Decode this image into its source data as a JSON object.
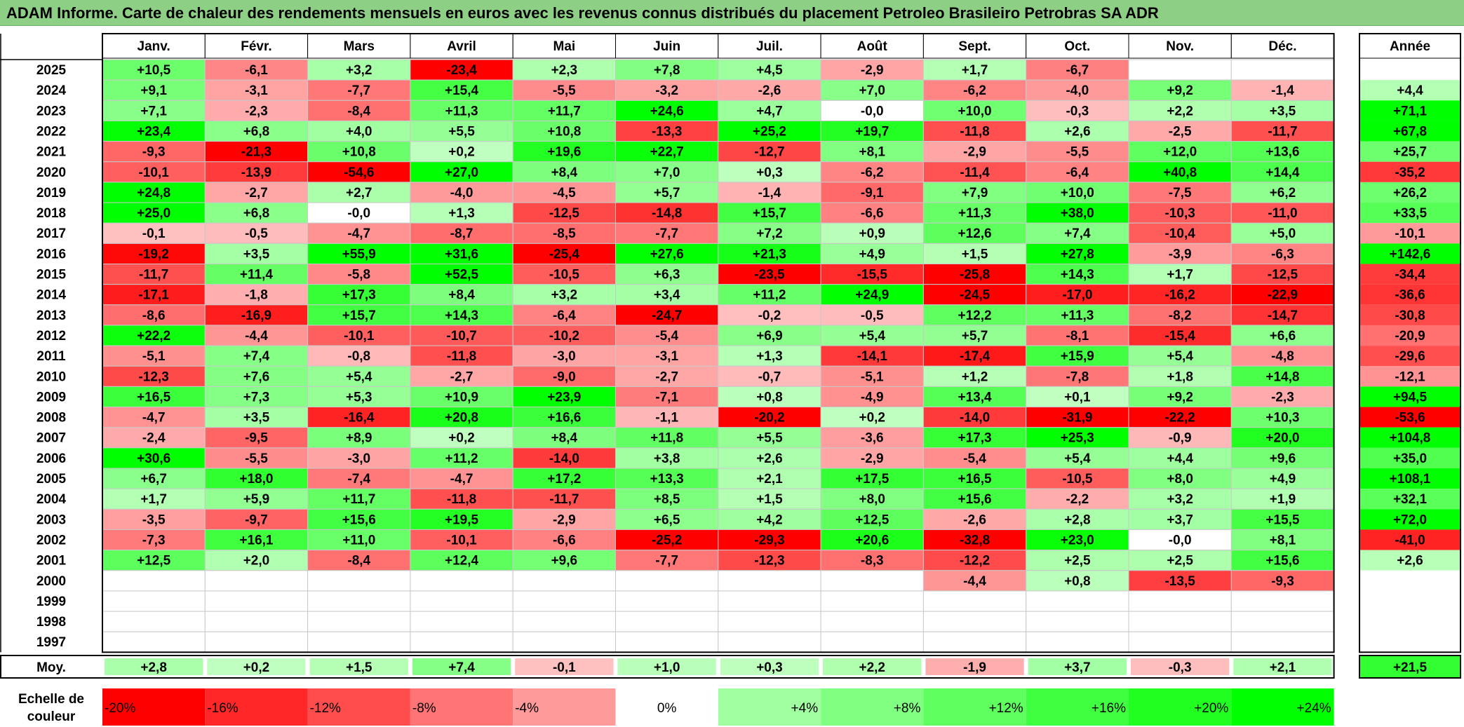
{
  "title": "ADAM Informe. Carte de chaleur des rendements mensuels en euros avec les revenus connus distribués du placement Petroleo Brasileiro Petrobras SA ADR",
  "chart_data": {
    "type": "heatmap",
    "months": [
      "Janv.",
      "Févr.",
      "Mars",
      "Avril",
      "Mai",
      "Juin",
      "Juil.",
      "Août",
      "Sept.",
      "Oct.",
      "Nov.",
      "Déc."
    ],
    "year_header": "Année",
    "avg_label": "Moy.",
    "scale_title_line1": "Echelle de",
    "scale_title_line2": "couleur",
    "rows": [
      {
        "year": "2025",
        "values": [
          10.5,
          -6.1,
          3.2,
          -23.4,
          2.3,
          7.8,
          4.5,
          -2.9,
          1.7,
          -6.7,
          null,
          null
        ],
        "annual": null
      },
      {
        "year": "2024",
        "values": [
          9.1,
          -3.1,
          -7.7,
          15.4,
          -5.5,
          -3.2,
          -2.6,
          7.0,
          -6.2,
          -4.0,
          9.2,
          -1.4
        ],
        "annual": 4.4
      },
      {
        "year": "2023",
        "values": [
          7.1,
          -2.3,
          -8.4,
          11.3,
          11.7,
          24.6,
          4.7,
          "-0,0",
          10.0,
          -0.3,
          2.2,
          3.5
        ],
        "annual": 71.1
      },
      {
        "year": "2022",
        "values": [
          23.4,
          6.8,
          4.0,
          5.5,
          10.8,
          -13.3,
          25.2,
          19.7,
          -11.8,
          2.6,
          -2.5,
          -11.7
        ],
        "annual": 67.8
      },
      {
        "year": "2021",
        "values": [
          -9.3,
          -21.3,
          10.8,
          0.2,
          19.6,
          22.7,
          -12.7,
          8.1,
          -2.9,
          -5.5,
          12.0,
          13.6
        ],
        "annual": 25.7
      },
      {
        "year": "2020",
        "values": [
          -10.1,
          -13.9,
          -54.6,
          27.0,
          8.4,
          7.0,
          0.3,
          -6.2,
          -11.4,
          -6.4,
          40.8,
          14.4
        ],
        "annual": -35.2
      },
      {
        "year": "2019",
        "values": [
          24.8,
          -2.7,
          2.7,
          -4.0,
          -4.5,
          5.7,
          -1.4,
          -9.1,
          7.9,
          10.0,
          -7.5,
          6.2
        ],
        "annual": 26.2
      },
      {
        "year": "2018",
        "values": [
          25.0,
          6.8,
          "-0,0",
          1.3,
          -12.5,
          -14.8,
          15.7,
          -6.6,
          11.3,
          38.0,
          -10.3,
          -11.0
        ],
        "annual": 33.5
      },
      {
        "year": "2017",
        "values": [
          -0.1,
          -0.5,
          -4.7,
          -8.7,
          -8.5,
          -7.7,
          7.2,
          0.9,
          12.6,
          7.4,
          -10.4,
          5.0
        ],
        "annual": -10.1
      },
      {
        "year": "2016",
        "values": [
          -19.2,
          3.5,
          55.9,
          31.6,
          -25.4,
          27.6,
          21.3,
          4.9,
          1.5,
          27.8,
          -3.9,
          -6.3
        ],
        "annual": 142.6
      },
      {
        "year": "2015",
        "values": [
          -11.7,
          11.4,
          -5.8,
          52.5,
          -10.5,
          6.3,
          -23.5,
          -15.5,
          -25.8,
          14.3,
          1.7,
          -12.5
        ],
        "annual": -34.4
      },
      {
        "year": "2014",
        "values": [
          -17.1,
          -1.8,
          17.3,
          8.4,
          3.2,
          3.4,
          11.2,
          24.9,
          -24.5,
          -17.0,
          -16.2,
          -22.9
        ],
        "annual": -36.6
      },
      {
        "year": "2013",
        "values": [
          -8.6,
          -16.9,
          15.7,
          14.3,
          -6.4,
          -24.7,
          -0.2,
          -0.5,
          12.2,
          11.3,
          -8.2,
          -14.7
        ],
        "annual": -30.8
      },
      {
        "year": "2012",
        "values": [
          22.2,
          -4.4,
          -10.1,
          -10.7,
          -10.2,
          -5.4,
          6.9,
          5.4,
          5.7,
          -8.1,
          -15.4,
          6.6
        ],
        "annual": -20.9
      },
      {
        "year": "2011",
        "values": [
          -5.1,
          7.4,
          -0.8,
          -11.8,
          -3.0,
          -3.1,
          1.3,
          -14.1,
          -17.4,
          15.9,
          5.4,
          -4.8
        ],
        "annual": -29.6
      },
      {
        "year": "2010",
        "values": [
          -12.3,
          7.6,
          5.4,
          -2.7,
          -9.0,
          -2.7,
          -0.7,
          -5.1,
          1.2,
          -7.8,
          1.8,
          14.8
        ],
        "annual": -12.1
      },
      {
        "year": "2009",
        "values": [
          16.5,
          7.3,
          5.3,
          10.9,
          23.9,
          -7.1,
          0.8,
          -4.9,
          13.4,
          0.1,
          9.2,
          -2.3
        ],
        "annual": 94.5
      },
      {
        "year": "2008",
        "values": [
          -4.7,
          3.5,
          -16.4,
          20.8,
          16.6,
          -1.1,
          -20.2,
          0.2,
          -14.0,
          -31.9,
          -22.2,
          10.3
        ],
        "annual": -53.6
      },
      {
        "year": "2007",
        "values": [
          -2.4,
          -9.5,
          8.9,
          0.2,
          8.4,
          11.8,
          5.5,
          -3.6,
          17.3,
          25.3,
          -0.9,
          20.0
        ],
        "annual": 104.8
      },
      {
        "year": "2006",
        "values": [
          30.6,
          -5.5,
          -3.0,
          11.2,
          -14.0,
          3.8,
          2.6,
          -2.9,
          -5.4,
          5.4,
          4.4,
          9.6
        ],
        "annual": 35.0
      },
      {
        "year": "2005",
        "values": [
          6.7,
          18.0,
          -7.4,
          -4.7,
          17.2,
          13.3,
          2.1,
          17.5,
          16.5,
          -10.5,
          8.0,
          4.9
        ],
        "annual": 108.1
      },
      {
        "year": "2004",
        "values": [
          1.7,
          5.9,
          11.7,
          -11.8,
          -11.7,
          8.5,
          1.5,
          8.0,
          15.6,
          -2.2,
          3.2,
          1.9
        ],
        "annual": 32.1
      },
      {
        "year": "2003",
        "values": [
          -3.5,
          -9.7,
          15.6,
          19.5,
          -2.9,
          6.5,
          4.2,
          12.5,
          -2.6,
          2.8,
          3.7,
          15.5
        ],
        "annual": 72.0
      },
      {
        "year": "2002",
        "values": [
          -7.3,
          16.1,
          11.0,
          -10.1,
          -6.6,
          -25.2,
          -29.3,
          20.6,
          -32.8,
          23.0,
          "-0,0",
          8.1
        ],
        "annual": -41.0
      },
      {
        "year": "2001",
        "values": [
          12.5,
          2.0,
          -8.4,
          12.4,
          9.6,
          -7.7,
          -12.3,
          -8.3,
          -12.2,
          2.5,
          2.5,
          15.6
        ],
        "annual": 2.6
      },
      {
        "year": "2000",
        "values": [
          null,
          null,
          null,
          null,
          null,
          null,
          null,
          null,
          -4.4,
          0.8,
          -13.5,
          -9.3
        ],
        "annual": null
      },
      {
        "year": "1999",
        "values": [
          null,
          null,
          null,
          null,
          null,
          null,
          null,
          null,
          null,
          null,
          null,
          null
        ],
        "annual": null
      },
      {
        "year": "1998",
        "values": [
          null,
          null,
          null,
          null,
          null,
          null,
          null,
          null,
          null,
          null,
          null,
          null
        ],
        "annual": null
      },
      {
        "year": "1997",
        "values": [
          null,
          null,
          null,
          null,
          null,
          null,
          null,
          null,
          null,
          null,
          null,
          null
        ],
        "annual": null
      }
    ],
    "averages": [
      2.8,
      0.2,
      1.5,
      7.4,
      -0.1,
      1.0,
      0.3,
      2.2,
      -1.9,
      3.7,
      -0.3,
      2.1
    ],
    "average_annual": 21.5,
    "scale": [
      "-20%",
      "-16%",
      "-12%",
      "-8%",
      "-4%",
      "0%",
      "+4%",
      "+8%",
      "+12%",
      "+16%",
      "+20%",
      "+24%"
    ],
    "colors": {
      "negative": "#ff0000",
      "positive": "#00ff00",
      "neutral": "#ffffff",
      "title_bar": "#8ecf86"
    }
  }
}
